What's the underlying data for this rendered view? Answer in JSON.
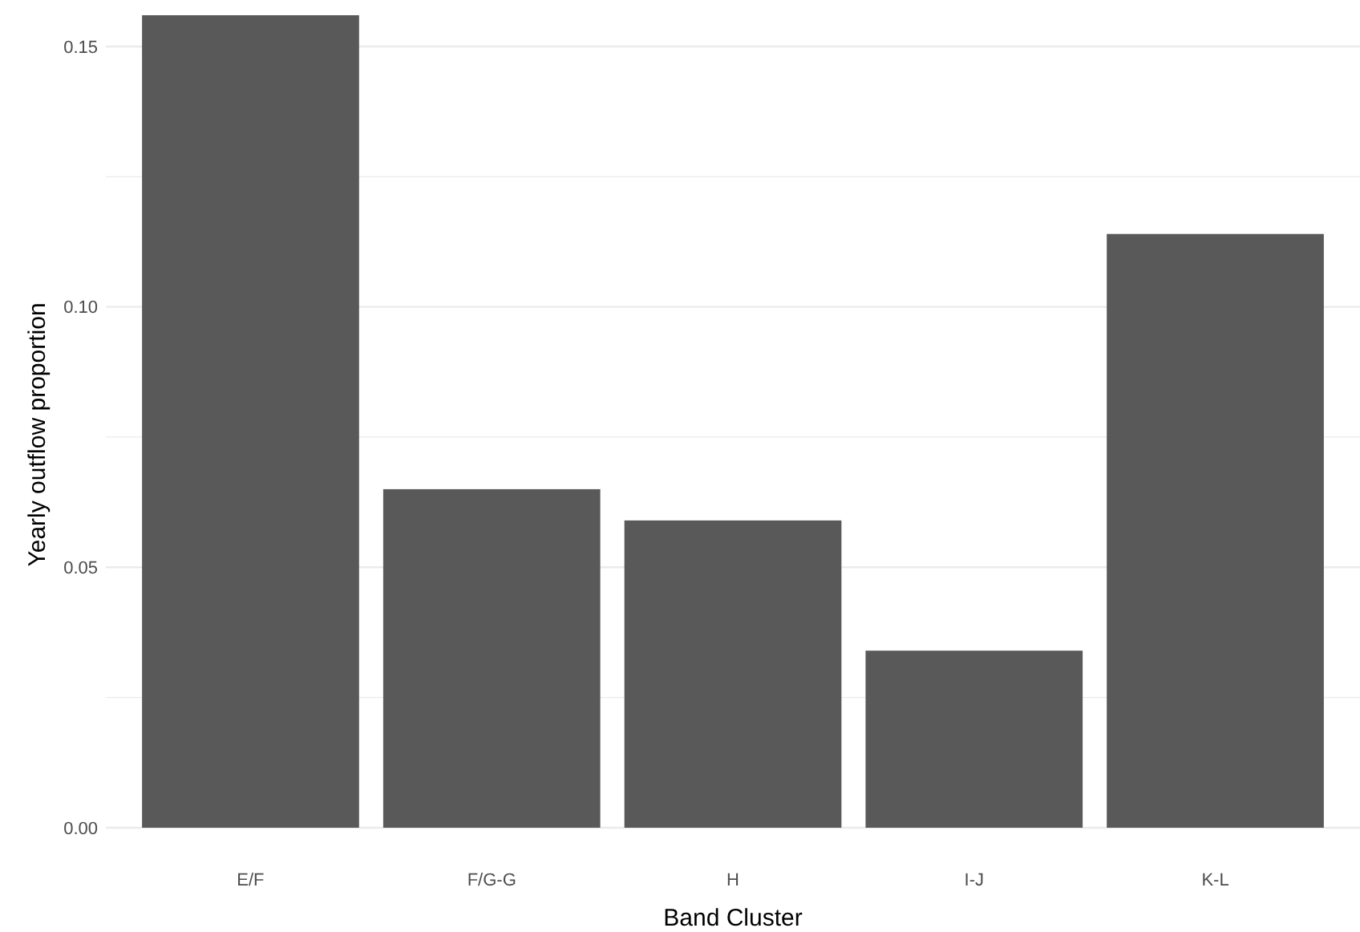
{
  "chart_data": {
    "type": "bar",
    "xlabel": "Band Cluster",
    "ylabel": "Yearly outflow proportion",
    "categories": [
      "E/F",
      "F/G-G",
      "H",
      "I-J",
      "K-L"
    ],
    "values": [
      0.156,
      0.065,
      0.059,
      0.034,
      0.114
    ],
    "color": "#595959",
    "ylim": [
      0,
      0.158
    ],
    "yticks": [
      {
        "value": 0,
        "label": "0.00"
      },
      {
        "value": 0.025,
        "label": null
      },
      {
        "value": 0.05,
        "label": "0.05"
      },
      {
        "value": 0.075,
        "label": null
      },
      {
        "value": 0.1,
        "label": "0.10"
      },
      {
        "value": 0.125,
        "label": null
      },
      {
        "value": 0.15,
        "label": "0.15"
      }
    ],
    "grid": "y"
  }
}
